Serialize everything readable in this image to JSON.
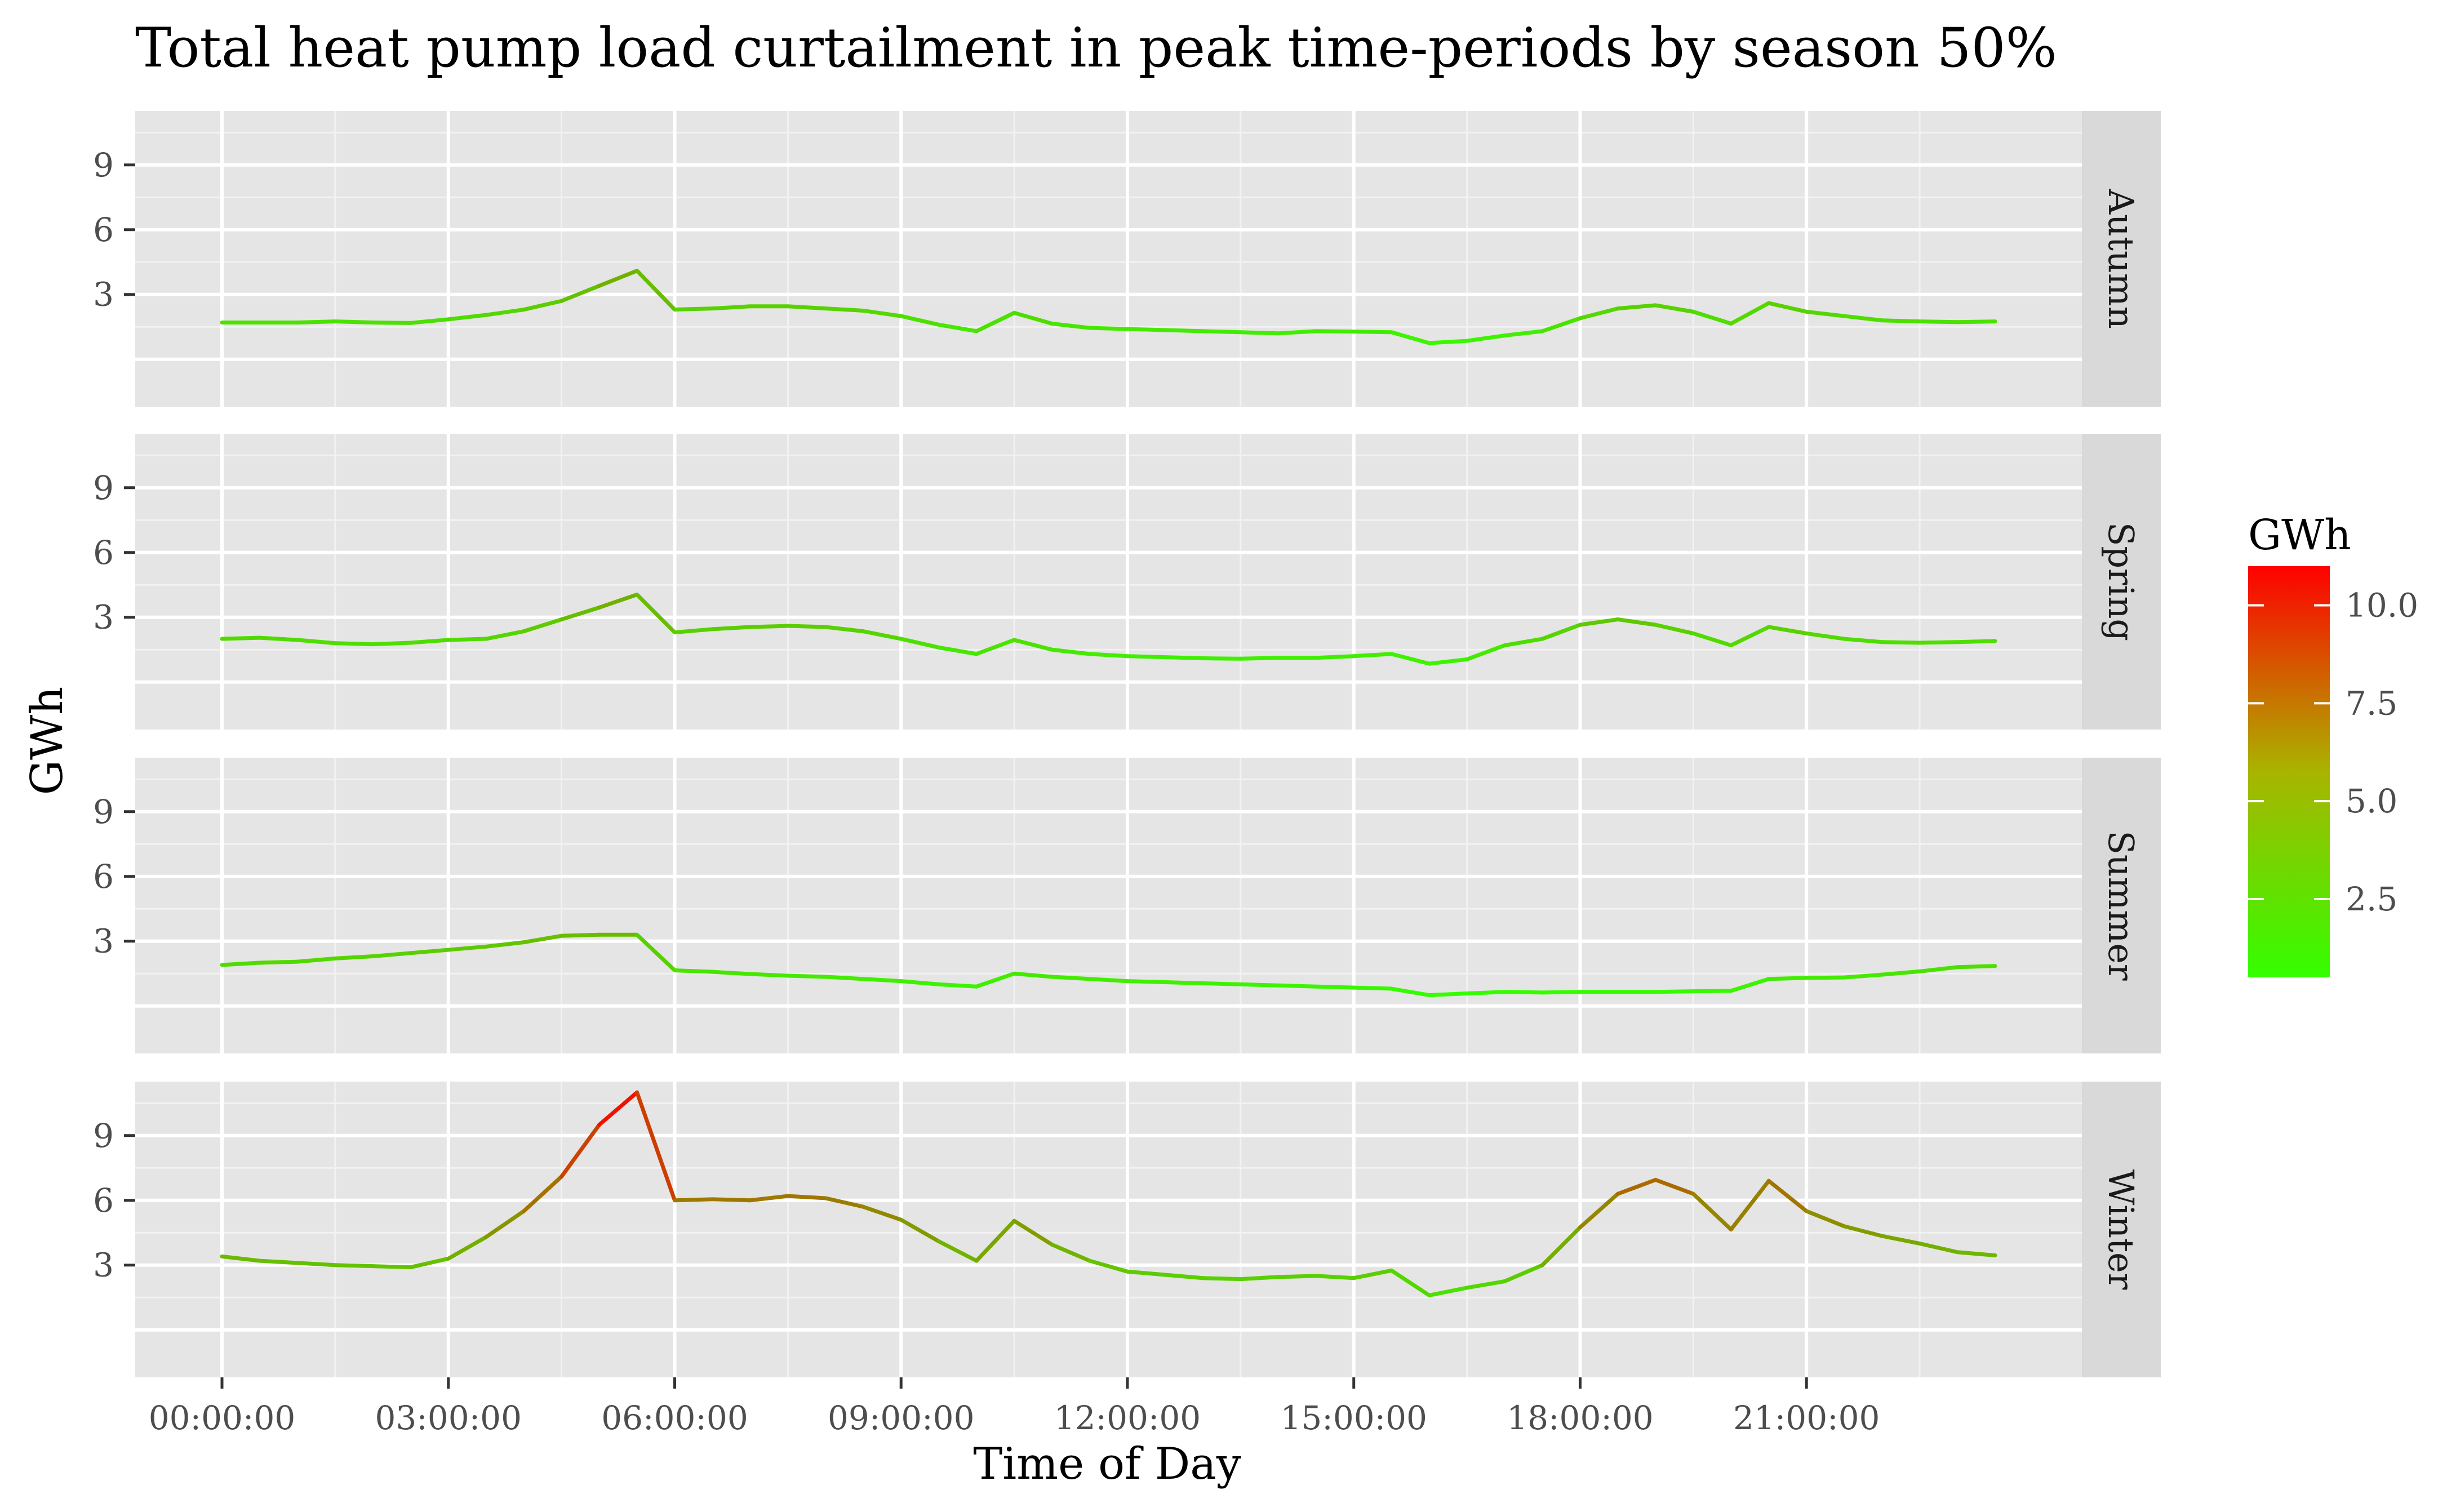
{
  "chart_data": {
    "type": "line",
    "title": "Total heat pump load curtailment in peak time-periods by season 50%",
    "xlabel": "Time of Day",
    "ylabel": "GWh",
    "x_tick_labels": [
      "00:00:00",
      "03:00:00",
      "06:00:00",
      "09:00:00",
      "12:00:00",
      "15:00:00",
      "18:00:00",
      "21:00:00"
    ],
    "x_ticks_hours": [
      0,
      3,
      6,
      9,
      12,
      15,
      18,
      21
    ],
    "xlim_hours": [
      -1.15,
      24.65
    ],
    "ylim": [
      -2.2,
      11.5
    ],
    "y_ticks": [
      3,
      6,
      9
    ],
    "y_tick_labels": [
      "3",
      "6",
      "9"
    ],
    "grid": true,
    "x_hours": [
      0,
      0.5,
      1,
      1.5,
      2,
      2.5,
      3,
      3.5,
      4,
      4.5,
      5,
      5.5,
      6,
      6.5,
      7,
      7.5,
      8,
      8.5,
      9,
      9.5,
      10,
      10.5,
      11,
      11.5,
      12,
      12.5,
      13,
      13.5,
      14,
      14.5,
      15,
      15.5,
      16,
      16.5,
      17,
      17.5,
      18,
      18.5,
      19,
      19.5,
      20,
      20.5,
      21,
      21.5,
      22,
      22.5,
      23,
      23.5
    ],
    "facets": [
      {
        "name": "Autumn",
        "values": [
          1.7,
          1.7,
          1.7,
          1.75,
          1.7,
          1.68,
          1.85,
          2.05,
          2.3,
          2.7,
          3.4,
          4.1,
          2.3,
          2.35,
          2.45,
          2.45,
          2.35,
          2.25,
          2.0,
          1.6,
          1.3,
          2.15,
          1.65,
          1.45,
          1.4,
          1.35,
          1.3,
          1.25,
          1.2,
          1.3,
          1.28,
          1.25,
          0.75,
          0.85,
          1.1,
          1.3,
          1.9,
          2.35,
          2.5,
          2.2,
          1.65,
          2.6,
          2.2,
          2.0,
          1.8,
          1.75,
          1.72,
          1.75
        ]
      },
      {
        "name": "Spring",
        "values": [
          2.0,
          2.05,
          1.95,
          1.8,
          1.75,
          1.82,
          1.95,
          2.0,
          2.35,
          2.9,
          3.45,
          4.05,
          2.3,
          2.45,
          2.55,
          2.6,
          2.55,
          2.35,
          2.0,
          1.6,
          1.3,
          1.95,
          1.5,
          1.3,
          1.2,
          1.15,
          1.1,
          1.08,
          1.12,
          1.12,
          1.2,
          1.3,
          0.85,
          1.05,
          1.7,
          2.0,
          2.65,
          2.9,
          2.65,
          2.25,
          1.7,
          2.55,
          2.25,
          2.0,
          1.85,
          1.82,
          1.85,
          1.9
        ]
      },
      {
        "name": "Summer",
        "values": [
          1.9,
          2.0,
          2.05,
          2.2,
          2.3,
          2.45,
          2.6,
          2.75,
          2.95,
          3.25,
          3.3,
          3.3,
          1.65,
          1.58,
          1.48,
          1.4,
          1.35,
          1.25,
          1.15,
          1.0,
          0.9,
          1.5,
          1.35,
          1.25,
          1.15,
          1.1,
          1.05,
          1.0,
          0.95,
          0.9,
          0.85,
          0.8,
          0.5,
          0.58,
          0.65,
          0.62,
          0.65,
          0.65,
          0.65,
          0.68,
          0.7,
          1.25,
          1.3,
          1.32,
          1.45,
          1.6,
          1.8,
          1.85
        ]
      },
      {
        "name": "Winter",
        "values": [
          3.4,
          3.2,
          3.1,
          3.0,
          2.95,
          2.9,
          3.3,
          4.3,
          5.5,
          7.1,
          9.5,
          11.0,
          6.0,
          6.05,
          6.0,
          6.2,
          6.1,
          5.7,
          5.1,
          4.1,
          3.2,
          5.05,
          3.95,
          3.2,
          2.7,
          2.55,
          2.4,
          2.35,
          2.45,
          2.5,
          2.4,
          2.75,
          1.6,
          1.95,
          2.25,
          3.0,
          4.75,
          6.3,
          6.95,
          6.3,
          4.65,
          6.9,
          5.5,
          4.8,
          4.35,
          4.0,
          3.6,
          3.45
        ]
      }
    ],
    "legend": {
      "title": "GWh",
      "position": "right",
      "tick_labels": [
        "2.5",
        "5.0",
        "7.5",
        "10.0"
      ],
      "tick_values": [
        2.5,
        5.0,
        7.5,
        10.0
      ],
      "range": [
        0.5,
        11.0
      ],
      "color_low": "#33ff00",
      "color_high": "#ff0000"
    },
    "colors": {
      "panel_background": "#e5e5e5",
      "grid_major": "#ffffff",
      "strip_background": "#d9d9d9"
    }
  }
}
